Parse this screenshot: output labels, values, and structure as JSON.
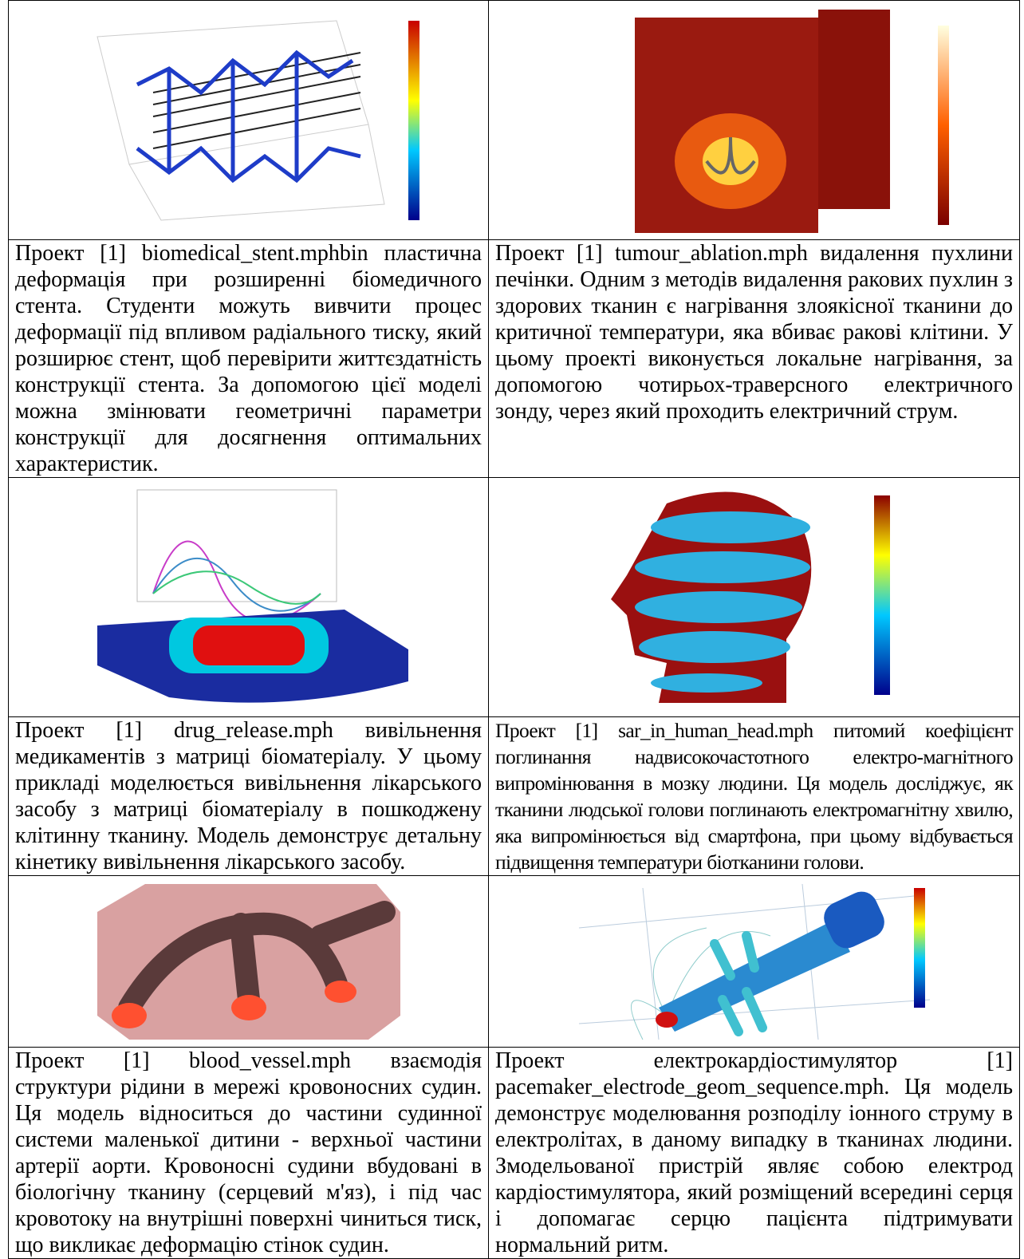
{
  "table": {
    "rows": [
      {
        "left": "Проект [1] biomedical_stent.mphbin пластична деформація при розширенні біомедичного стента. Студенти можуть вивчити процес деформації під впливом радіального тиску, який розширює стент, щоб перевірити життєздатність конструкції стента. За допомогою цієї моделі можна змінювати геометричні параметри конструкції для досягнення оптимальних характеристик.",
        "right": "Проект [1] tumour_ablation.mph видалення пухлини печінки. Одним з методів видалення ракових пухлин з здорових тканин є нагрівання злоякісної тканини до критичної температури, яка вбиває ракові клітини. У цьому проекті виконується локальне нагрівання, за допомогою чотирьох-траверсного електричного зонду, через який проходить електричний струм."
      },
      {
        "left": "Проект [1] drug_release.mph вивільнення медикаментів з матриці біоматеріалу. У цьому прикладі моделюється вивільнення лікарського засобу з матриці біоматеріалу в пошкоджену клітинну тканину. Модель демонструє детальну кінетику вивільнення лікарського засобу.",
        "right": "Проект [1] sar_in_human_head.mph питомий коефіцієнт поглинання надвисокочастотного електро-магнітного випромінювання в мозку людини. Ця модель досліджує, як тканини людської голови поглинають електромагнітну хвилю, яка випромінюється від смартфона, при цьому відбувається підвищення температури біотканини голови."
      },
      {
        "left": "Проект [1] blood_vessel.mph взаємодія структури рідини в мережі кровоносних судин. Ця модель відноситься до частини судинної системи маленької дитини - верхньої частини артерії аорти. Кровоносні судини вбудовані в біологічну тканину (серцевий м'яз), і під час кровотоку на внутрішні поверхні чиниться тиск, що викликає деформацію стінок судин.",
        "right": "Проект електрокардіостимулятор [1] pacemaker_electrode_geom_sequence.mph. Ця модель демонструє моделювання розподілу іонного струму в електролітах, в даному випадку в тканинах людини. Змодельованої пристрій являє собою електрод кардіостимулятора, який розміщений всередині серця і допомагає серцю пацієнта підтримувати нормальний ритм."
      }
    ]
  }
}
